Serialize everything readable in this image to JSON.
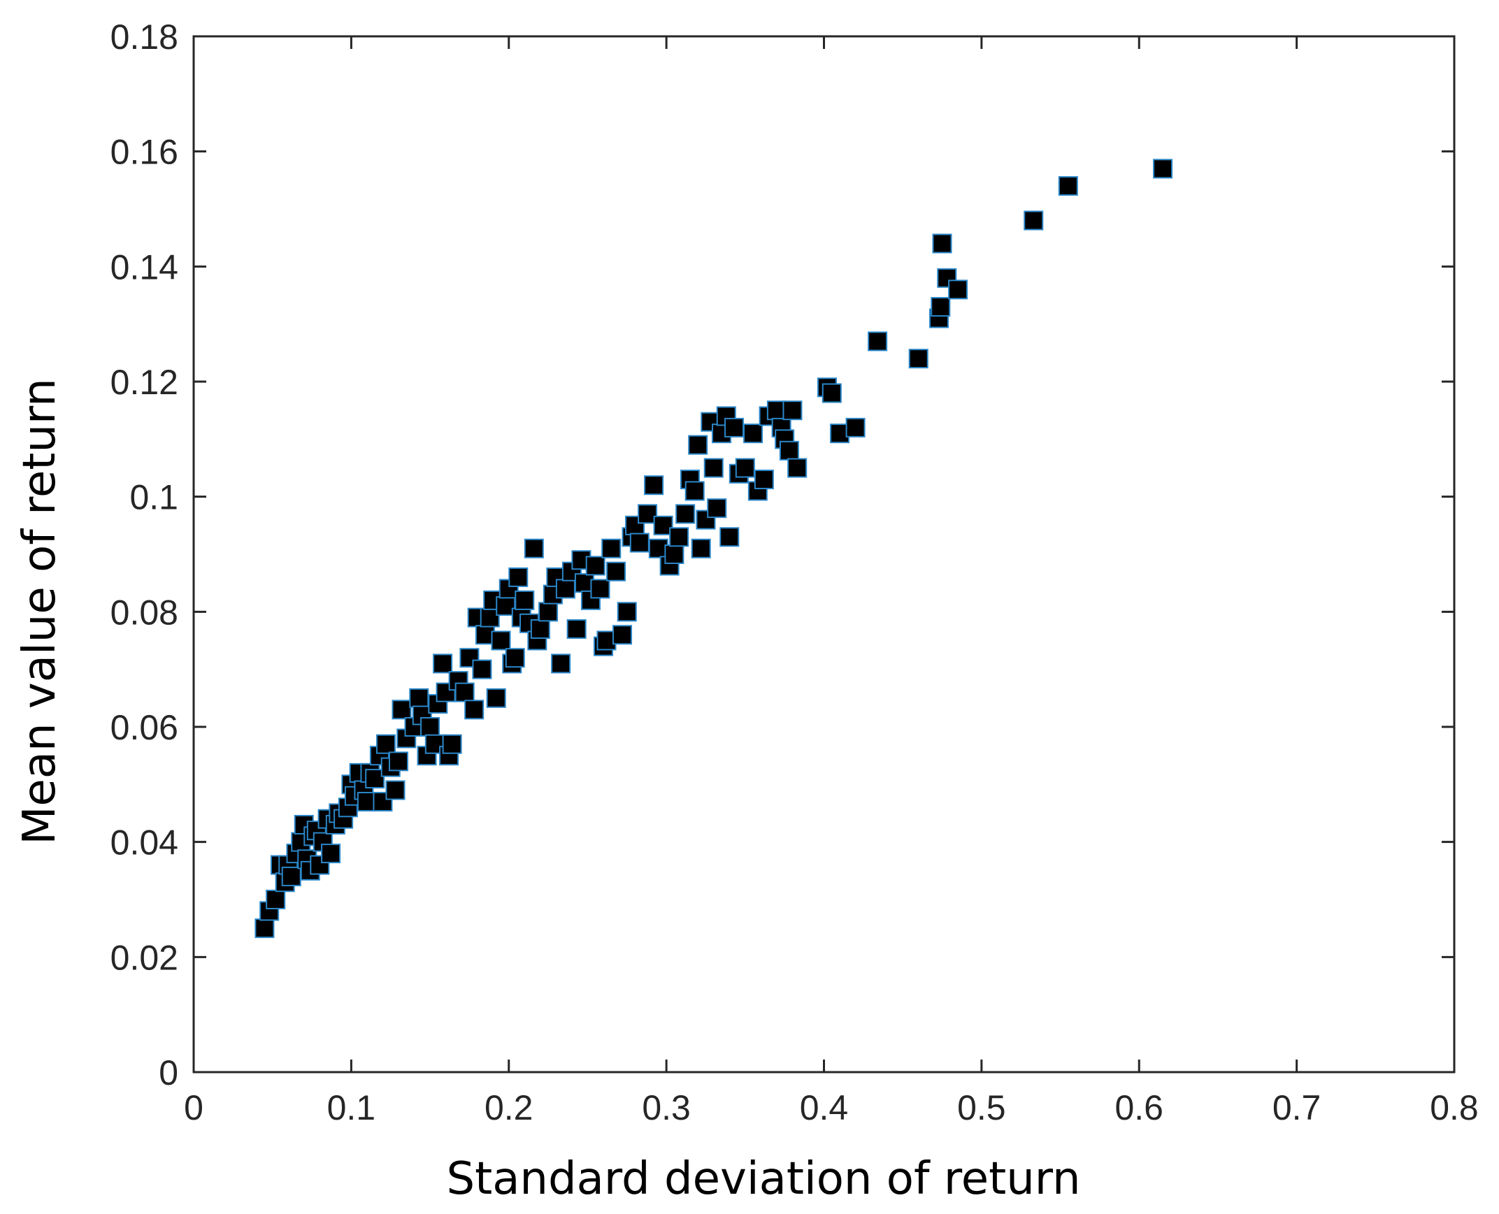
{
  "chart_data": {
    "type": "scatter",
    "title": "",
    "xlabel": "Standard deviation of return",
    "ylabel": "Mean value of return",
    "xlim": [
      0,
      0.8
    ],
    "ylim": [
      0,
      0.18
    ],
    "xticks": [
      "0",
      "0.1",
      "0.2",
      "0.3",
      "0.4",
      "0.5",
      "0.6",
      "0.7",
      "0.8"
    ],
    "yticks": [
      "0",
      "0.02",
      "0.04",
      "0.06",
      "0.08",
      "0.1",
      "0.12",
      "0.14",
      "0.16",
      "0.18"
    ],
    "grid": false,
    "legend": "none",
    "marker": "square",
    "marker_fill": "#000000",
    "marker_edge": "#2a86c8",
    "series": [
      {
        "points": [
          [
            0.045,
            0.025
          ],
          [
            0.048,
            0.028
          ],
          [
            0.052,
            0.03
          ],
          [
            0.055,
            0.036
          ],
          [
            0.058,
            0.033
          ],
          [
            0.06,
            0.036
          ],
          [
            0.062,
            0.034
          ],
          [
            0.065,
            0.038
          ],
          [
            0.068,
            0.04
          ],
          [
            0.07,
            0.043
          ],
          [
            0.072,
            0.037
          ],
          [
            0.074,
            0.035
          ],
          [
            0.076,
            0.041
          ],
          [
            0.078,
            0.042
          ],
          [
            0.08,
            0.036
          ],
          [
            0.082,
            0.04
          ],
          [
            0.085,
            0.044
          ],
          [
            0.087,
            0.038
          ],
          [
            0.09,
            0.043
          ],
          [
            0.092,
            0.045
          ],
          [
            0.095,
            0.044
          ],
          [
            0.098,
            0.046
          ],
          [
            0.1,
            0.05
          ],
          [
            0.102,
            0.048
          ],
          [
            0.105,
            0.052
          ],
          [
            0.108,
            0.049
          ],
          [
            0.11,
            0.047
          ],
          [
            0.112,
            0.052
          ],
          [
            0.115,
            0.051
          ],
          [
            0.118,
            0.055
          ],
          [
            0.12,
            0.047
          ],
          [
            0.122,
            0.057
          ],
          [
            0.125,
            0.053
          ],
          [
            0.128,
            0.049
          ],
          [
            0.13,
            0.054
          ],
          [
            0.132,
            0.063
          ],
          [
            0.135,
            0.058
          ],
          [
            0.14,
            0.06
          ],
          [
            0.143,
            0.065
          ],
          [
            0.145,
            0.062
          ],
          [
            0.148,
            0.055
          ],
          [
            0.15,
            0.06
          ],
          [
            0.153,
            0.057
          ],
          [
            0.155,
            0.064
          ],
          [
            0.158,
            0.071
          ],
          [
            0.16,
            0.066
          ],
          [
            0.162,
            0.055
          ],
          [
            0.164,
            0.057
          ],
          [
            0.168,
            0.068
          ],
          [
            0.172,
            0.066
          ],
          [
            0.175,
            0.072
          ],
          [
            0.178,
            0.063
          ],
          [
            0.18,
            0.079
          ],
          [
            0.183,
            0.07
          ],
          [
            0.185,
            0.076
          ],
          [
            0.188,
            0.079
          ],
          [
            0.19,
            0.082
          ],
          [
            0.192,
            0.065
          ],
          [
            0.195,
            0.075
          ],
          [
            0.198,
            0.081
          ],
          [
            0.2,
            0.084
          ],
          [
            0.202,
            0.071
          ],
          [
            0.204,
            0.072
          ],
          [
            0.206,
            0.086
          ],
          [
            0.208,
            0.079
          ],
          [
            0.21,
            0.082
          ],
          [
            0.213,
            0.078
          ],
          [
            0.216,
            0.091
          ],
          [
            0.218,
            0.075
          ],
          [
            0.22,
            0.077
          ],
          [
            0.225,
            0.08
          ],
          [
            0.228,
            0.083
          ],
          [
            0.23,
            0.086
          ],
          [
            0.233,
            0.071
          ],
          [
            0.236,
            0.084
          ],
          [
            0.24,
            0.087
          ],
          [
            0.243,
            0.077
          ],
          [
            0.246,
            0.089
          ],
          [
            0.248,
            0.085
          ],
          [
            0.252,
            0.082
          ],
          [
            0.255,
            0.088
          ],
          [
            0.258,
            0.084
          ],
          [
            0.26,
            0.074
          ],
          [
            0.262,
            0.075
          ],
          [
            0.265,
            0.091
          ],
          [
            0.268,
            0.087
          ],
          [
            0.272,
            0.076
          ],
          [
            0.275,
            0.08
          ],
          [
            0.278,
            0.093
          ],
          [
            0.28,
            0.095
          ],
          [
            0.283,
            0.092
          ],
          [
            0.288,
            0.097
          ],
          [
            0.292,
            0.102
          ],
          [
            0.295,
            0.091
          ],
          [
            0.298,
            0.095
          ],
          [
            0.302,
            0.088
          ],
          [
            0.305,
            0.09
          ],
          [
            0.308,
            0.093
          ],
          [
            0.312,
            0.097
          ],
          [
            0.315,
            0.103
          ],
          [
            0.318,
            0.101
          ],
          [
            0.32,
            0.109
          ],
          [
            0.322,
            0.091
          ],
          [
            0.325,
            0.096
          ],
          [
            0.328,
            0.113
          ],
          [
            0.33,
            0.105
          ],
          [
            0.332,
            0.098
          ],
          [
            0.335,
            0.111
          ],
          [
            0.338,
            0.114
          ],
          [
            0.34,
            0.093
          ],
          [
            0.343,
            0.112
          ],
          [
            0.346,
            0.104
          ],
          [
            0.35,
            0.105
          ],
          [
            0.355,
            0.111
          ],
          [
            0.358,
            0.101
          ],
          [
            0.362,
            0.103
          ],
          [
            0.365,
            0.114
          ],
          [
            0.37,
            0.115
          ],
          [
            0.373,
            0.112
          ],
          [
            0.375,
            0.11
          ],
          [
            0.378,
            0.108
          ],
          [
            0.38,
            0.115
          ],
          [
            0.383,
            0.105
          ],
          [
            0.402,
            0.119
          ],
          [
            0.405,
            0.118
          ],
          [
            0.41,
            0.111
          ],
          [
            0.42,
            0.112
          ],
          [
            0.434,
            0.127
          ],
          [
            0.46,
            0.124
          ],
          [
            0.473,
            0.131
          ],
          [
            0.474,
            0.133
          ],
          [
            0.475,
            0.144
          ],
          [
            0.478,
            0.138
          ],
          [
            0.485,
            0.136
          ],
          [
            0.533,
            0.148
          ],
          [
            0.555,
            0.154
          ],
          [
            0.615,
            0.157
          ]
        ]
      }
    ]
  }
}
